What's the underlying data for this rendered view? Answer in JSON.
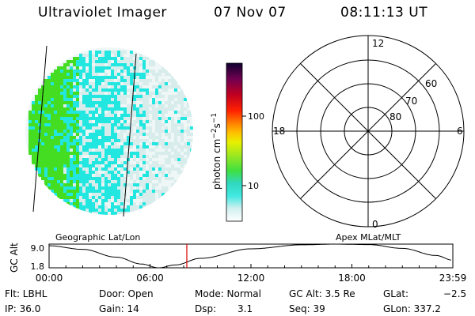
{
  "header": {
    "title": "Ultraviolet Imager",
    "date": "07 Nov 07",
    "time": "08:11:13 UT"
  },
  "colorbar": {
    "label_main": "photon cm",
    "label_exp1": "−2",
    "label_mid": "s",
    "label_exp2": "−1",
    "ticks": [
      "100",
      "10"
    ]
  },
  "polar": {
    "mlt_labels": {
      "top": "12",
      "bottom": "0",
      "left": "18",
      "right": "6"
    },
    "lat_labels": [
      "60",
      "70",
      "80"
    ]
  },
  "timeline": {
    "ylabel": "GC Alt",
    "ymax": "9.0",
    "ymin": "1.8",
    "left_caption": "Geographic Lat/Lon",
    "right_caption": "Apex MLat/MLT",
    "ticks": [
      "00:00",
      "06:00",
      "12:00",
      "18:00",
      "23:59"
    ],
    "current_time_hours": 8.187,
    "current_time_color": "#dd0000"
  },
  "info": {
    "flt": "Flt: LBHL",
    "ip": "IP: 36.0",
    "door": "Door: Open",
    "gain": "Gain: 14",
    "mode": "Mode: Normal",
    "dsp_label": "Dsp:",
    "dsp_value": "3.1",
    "gcalt": "GC Alt: 3.5 Re",
    "seq": "Seq: 39",
    "glat_label": "GLat:",
    "glat_value": "−2.5",
    "glon": "GLon: 337.2"
  },
  "colors": {
    "green": "#44dd22",
    "cyan": "#22e6e0",
    "pale": "#d8ecec"
  }
}
